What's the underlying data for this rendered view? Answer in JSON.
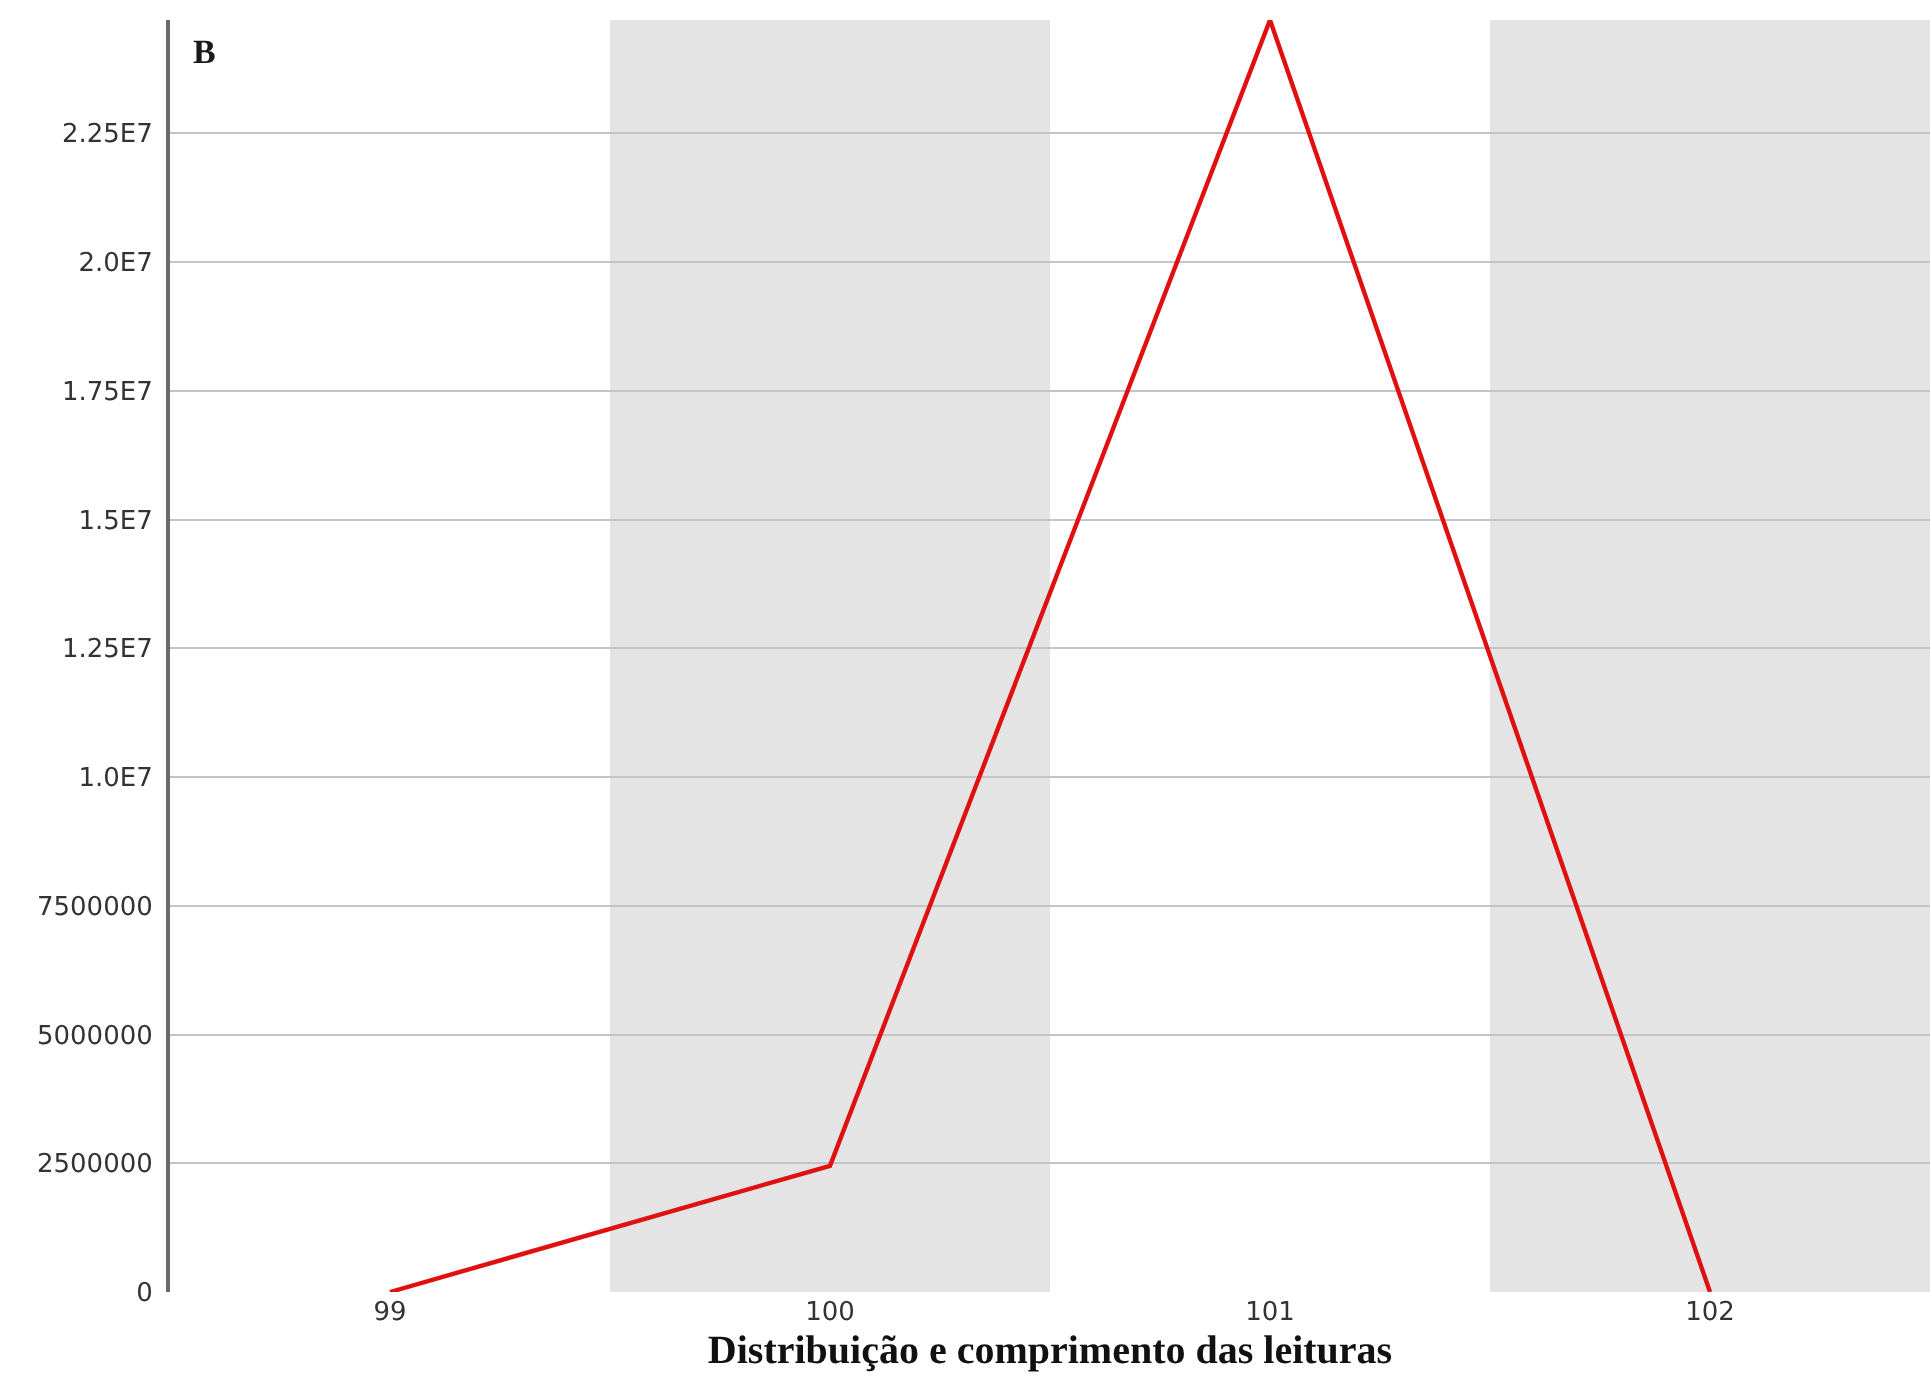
{
  "chart_data": {
    "type": "line",
    "title": "B",
    "xlabel": "Distribuição e comprimento das leituras",
    "x": [
      99,
      100,
      101,
      102
    ],
    "series": [
      {
        "color": "#e01010",
        "values": [
          0,
          2450000,
          24700000,
          0
        ]
      }
    ],
    "xlim": [
      98.5,
      102.5
    ],
    "xticks": [
      99,
      100,
      101,
      102
    ],
    "ylim": [
      0,
      24700000
    ],
    "yticks": [
      0,
      2500000,
      5000000,
      7500000,
      {
        "value": 10000000,
        "label": "1.0E7"
      },
      {
        "value": 12500000,
        "label": "1.25E7"
      },
      {
        "value": 15000000,
        "label": "1.5E7"
      },
      {
        "value": 17500000,
        "label": "1.75E7"
      },
      {
        "value": 20000000,
        "label": "2.0E7"
      },
      {
        "value": 22500000,
        "label": "2.25E7"
      }
    ],
    "bands": [
      {
        "axis": "x",
        "from": 99.5,
        "to": 100.5,
        "color": "#e4e4e4"
      },
      {
        "axis": "x",
        "from": 101.5,
        "to": 102.5,
        "color": "#e4e4e4"
      }
    ],
    "grid": "y",
    "line_style": "solid"
  }
}
